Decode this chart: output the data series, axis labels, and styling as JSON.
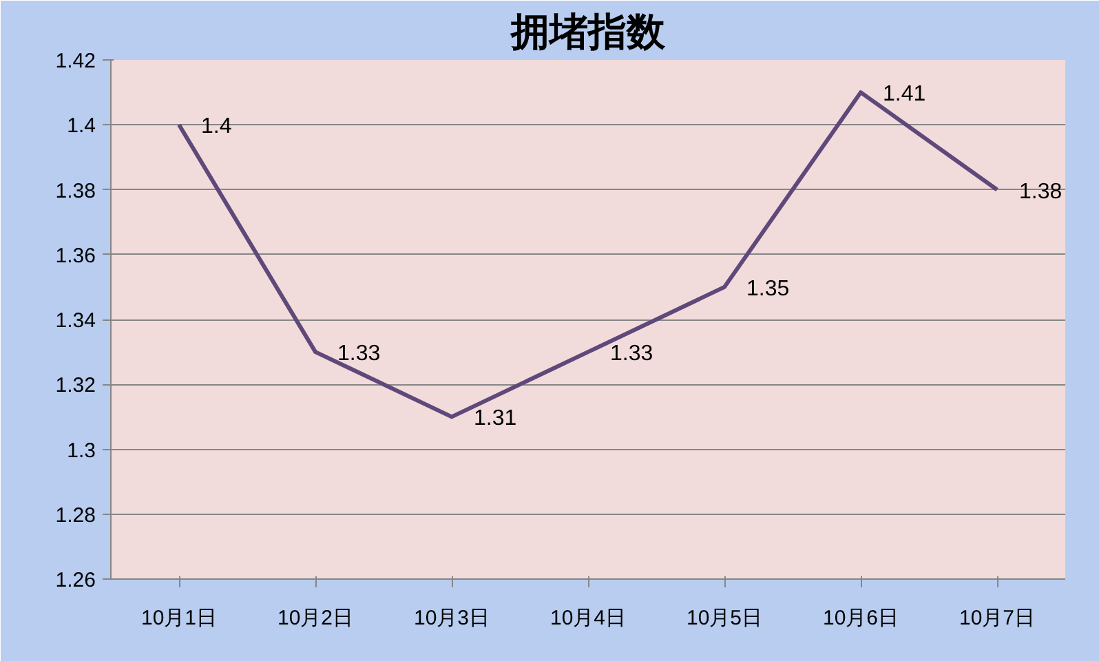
{
  "chart_data": {
    "type": "line",
    "title": "拥堵指数",
    "categories": [
      "10月1日",
      "10月2日",
      "10月3日",
      "10月4日",
      "10月5日",
      "10月6日",
      "10月7日"
    ],
    "series": [
      {
        "color": "#5f497a",
        "values": [
          1.4,
          1.33,
          1.31,
          1.33,
          1.35,
          1.41,
          1.38
        ]
      }
    ],
    "ylim": [
      1.26,
      1.42
    ],
    "yticks": [
      1.26,
      1.28,
      {
        "value": 1.3,
        "label": "1.3"
      },
      1.32,
      1.34,
      1.36,
      1.38,
      {
        "value": 1.4,
        "label": "1.4"
      },
      1.42
    ],
    "grid": "y",
    "data_labels": true,
    "marker": "none",
    "line_style": "solid"
  }
}
